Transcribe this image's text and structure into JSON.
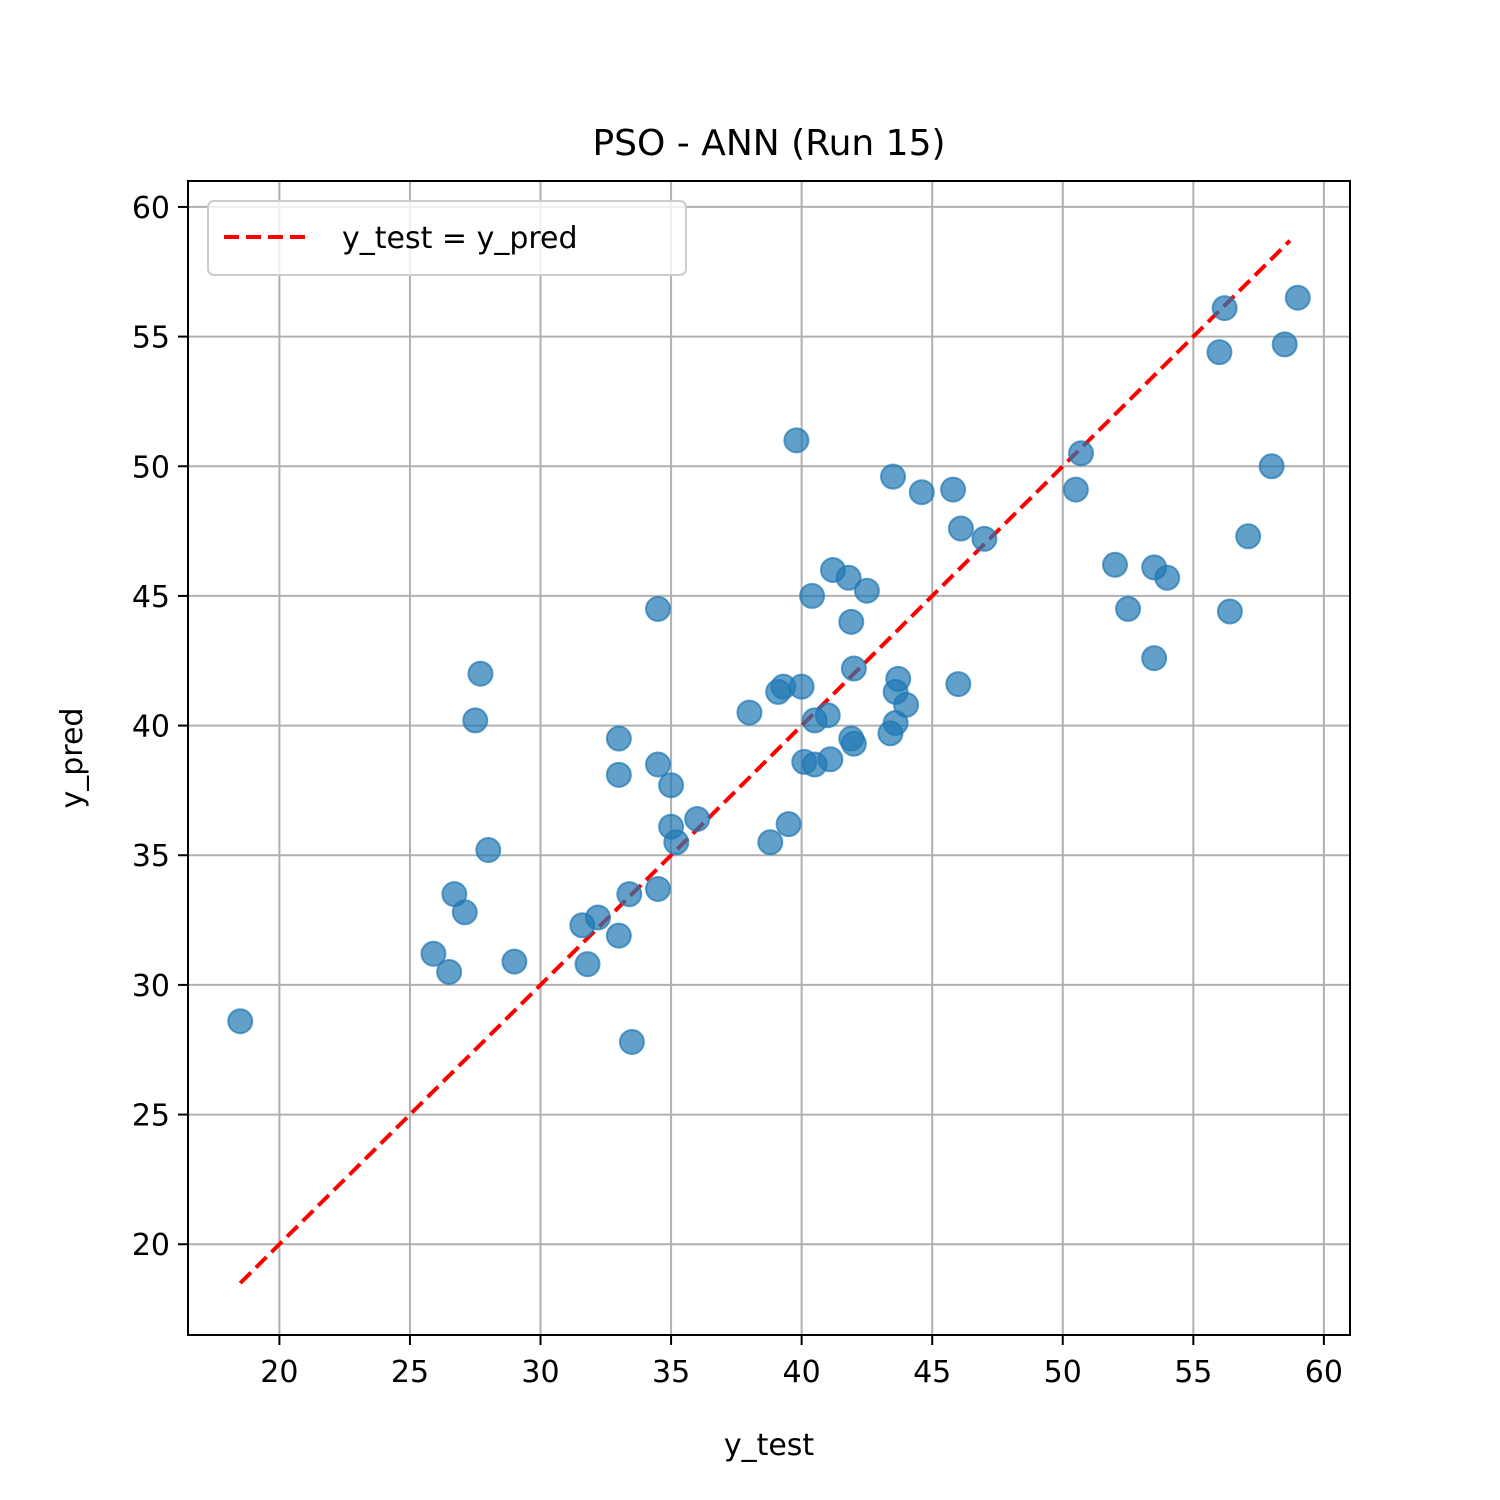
{
  "chart_data": {
    "type": "scatter",
    "title": "PSO - ANN (Run 15)",
    "xlabel": "y_test",
    "ylabel": "y_pred",
    "xlim": [
      16.5,
      61
    ],
    "ylim": [
      16.5,
      61
    ],
    "xticks": [
      20,
      25,
      30,
      35,
      40,
      45,
      50,
      55,
      60
    ],
    "yticks": [
      20,
      25,
      30,
      35,
      40,
      45,
      50,
      55,
      60
    ],
    "grid": true,
    "legend_position": "upper left",
    "reference_line": {
      "label": "y_test = y_pred",
      "color": "#ff0000",
      "style": "dashed",
      "x": [
        18.5,
        58.7
      ],
      "y": [
        18.5,
        58.7
      ]
    },
    "series": [
      {
        "color": "#1f77b4",
        "points": [
          [
            18.5,
            28.6
          ],
          [
            25.9,
            31.2
          ],
          [
            26.5,
            30.5
          ],
          [
            26.7,
            33.5
          ],
          [
            27.1,
            32.8
          ],
          [
            27.5,
            40.2
          ],
          [
            27.7,
            42.0
          ],
          [
            28.0,
            35.2
          ],
          [
            29.0,
            30.9
          ],
          [
            31.6,
            32.3
          ],
          [
            31.8,
            30.8
          ],
          [
            32.2,
            32.6
          ],
          [
            33.0,
            39.5
          ],
          [
            33.0,
            38.1
          ],
          [
            33.0,
            31.9
          ],
          [
            33.4,
            33.5
          ],
          [
            33.5,
            27.8
          ],
          [
            34.5,
            44.5
          ],
          [
            34.5,
            38.5
          ],
          [
            34.5,
            33.7
          ],
          [
            35.0,
            37.7
          ],
          [
            35.0,
            36.1
          ],
          [
            35.2,
            35.5
          ],
          [
            36.0,
            36.4
          ],
          [
            38.0,
            40.5
          ],
          [
            38.8,
            35.5
          ],
          [
            39.1,
            41.3
          ],
          [
            39.3,
            41.5
          ],
          [
            39.5,
            36.2
          ],
          [
            39.8,
            51.0
          ],
          [
            40.0,
            41.5
          ],
          [
            40.1,
            38.6
          ],
          [
            40.4,
            45.0
          ],
          [
            40.5,
            40.2
          ],
          [
            40.5,
            38.5
          ],
          [
            41.0,
            40.4
          ],
          [
            41.1,
            38.7
          ],
          [
            41.2,
            46.0
          ],
          [
            41.8,
            45.7
          ],
          [
            41.9,
            44.0
          ],
          [
            41.9,
            39.5
          ],
          [
            42.0,
            42.2
          ],
          [
            42.0,
            39.3
          ],
          [
            42.5,
            45.2
          ],
          [
            43.4,
            39.7
          ],
          [
            43.5,
            49.6
          ],
          [
            43.6,
            40.1
          ],
          [
            43.6,
            41.3
          ],
          [
            43.7,
            41.8
          ],
          [
            44.0,
            40.8
          ],
          [
            44.6,
            49.0
          ],
          [
            45.8,
            49.1
          ],
          [
            46.0,
            41.6
          ],
          [
            46.1,
            47.6
          ],
          [
            47.0,
            47.2
          ],
          [
            50.5,
            49.1
          ],
          [
            50.7,
            50.5
          ],
          [
            52.0,
            46.2
          ],
          [
            52.5,
            44.5
          ],
          [
            53.5,
            46.1
          ],
          [
            53.5,
            42.6
          ],
          [
            54.0,
            45.7
          ],
          [
            56.0,
            54.4
          ],
          [
            56.2,
            56.1
          ],
          [
            56.4,
            44.4
          ],
          [
            57.1,
            47.3
          ],
          [
            58.0,
            50.0
          ],
          [
            58.5,
            54.7
          ],
          [
            59.0,
            56.5
          ]
        ]
      }
    ]
  }
}
